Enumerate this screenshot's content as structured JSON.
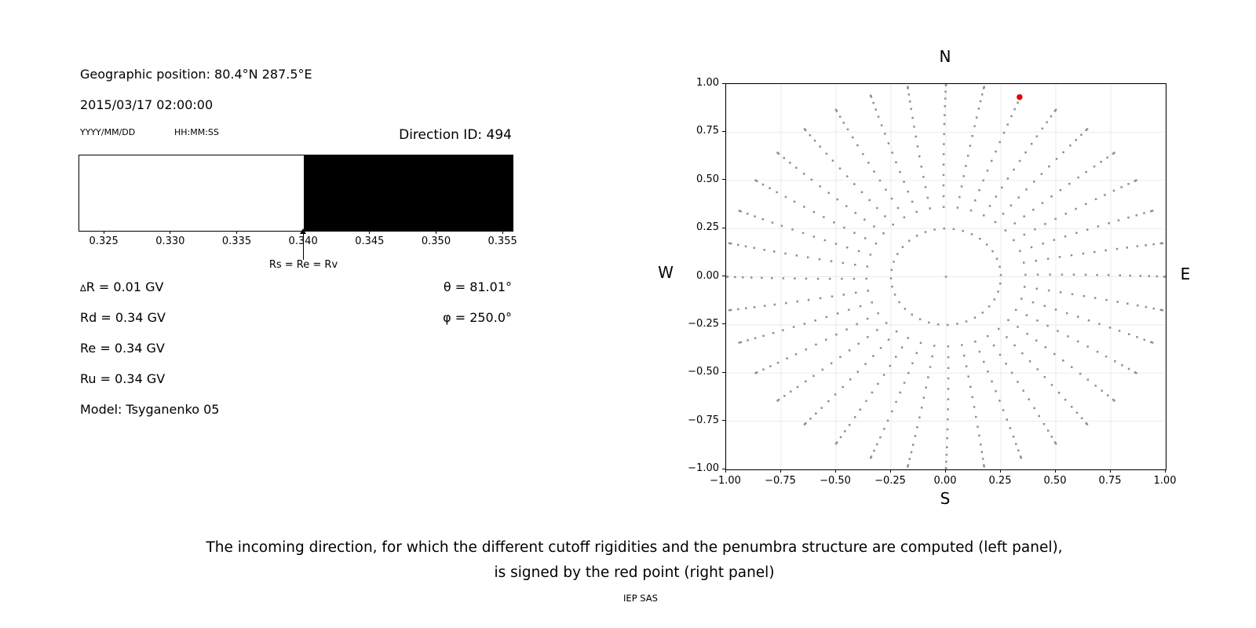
{
  "left_panel": {
    "geo": "Geographic position: 80.4°N 287.5°E",
    "datetime": "2015/03/17 02:00:00",
    "date_format_label": "YYYY/MM/DD",
    "time_format_label": "HH:MM:SS",
    "direction_id": "Direction ID: 494",
    "penumbra_bar": {
      "axis_min": 0.3231,
      "axis_max": 0.3557,
      "boundary_value": 0.34,
      "tick_values": [
        0.325,
        0.33,
        0.335,
        0.34,
        0.345,
        0.35,
        0.355
      ],
      "tick_labels": [
        "0.325",
        "0.330",
        "0.335",
        "0.340",
        "0.345",
        "0.350",
        "0.355"
      ],
      "allowed_color": "#ffffff",
      "forbidden_color": "#000000",
      "arrow_label": "Rs = Re = Rv"
    },
    "values": {
      "delta_symbol": "∆",
      "delta_r": "R = 0.01 GV",
      "rd": "Rd = 0.34 GV",
      "re": "Re = 0.34 GV",
      "ru": "Ru = 0.34 GV",
      "model": "Model: Tsyganenko 05",
      "theta": "θ = 81.01°",
      "phi": "φ = 250.0°"
    }
  },
  "right_panel": {
    "compass": {
      "north": "N",
      "south": "S",
      "east": "E",
      "west": "W"
    },
    "x_tick_labels": [
      "−1.00",
      "−0.75",
      "−0.50",
      "−0.25",
      "0.00",
      "0.25",
      "0.50",
      "0.75",
      "1.00"
    ],
    "y_tick_labels": [
      "1.00",
      "0.75",
      "0.50",
      "0.25",
      "0.00",
      "−0.25",
      "−0.50",
      "−0.75",
      "−1.00"
    ]
  },
  "caption": {
    "line1": "The incoming direction, for which the different cutoff rigidities and the penumbra structure are computed (left panel),",
    "line2": "is signed by the red point (right panel)",
    "credit": "IEP SAS"
  },
  "chart_data": {
    "type": "scatter",
    "title": "",
    "xlabel": "",
    "ylabel": "",
    "xlim": [
      -1,
      1
    ],
    "ylim": [
      -1,
      1
    ],
    "grid": true,
    "grid_color": "#ebebeb",
    "x_ticks": [
      -1,
      -0.75,
      -0.5,
      -0.25,
      0,
      0.25,
      0.5,
      0.75,
      1
    ],
    "y_ticks": [
      1,
      0.75,
      0.5,
      0.25,
      0,
      -0.25,
      -0.5,
      -0.75,
      -1
    ],
    "direction_grid": {
      "azimuth_count": 36,
      "azimuth_step_deg": 10,
      "spoke_radii": [
        1.0,
        0.993,
        0.96,
        0.924,
        0.885,
        0.838,
        0.792,
        0.74,
        0.688,
        0.636,
        0.582,
        0.528,
        0.474,
        0.418,
        0.362
      ],
      "swirl_deg": 2.5,
      "inner_ring_radius": 0.25,
      "inner_ring_count": 36,
      "has_center_point": true
    },
    "dot_color": "#8f8f8f",
    "dot_size_px": 2.5,
    "selected_direction": {
      "id": 494,
      "x": 0.335,
      "y": 0.932,
      "color": "#ee0000",
      "radius_px": 3.7
    }
  }
}
